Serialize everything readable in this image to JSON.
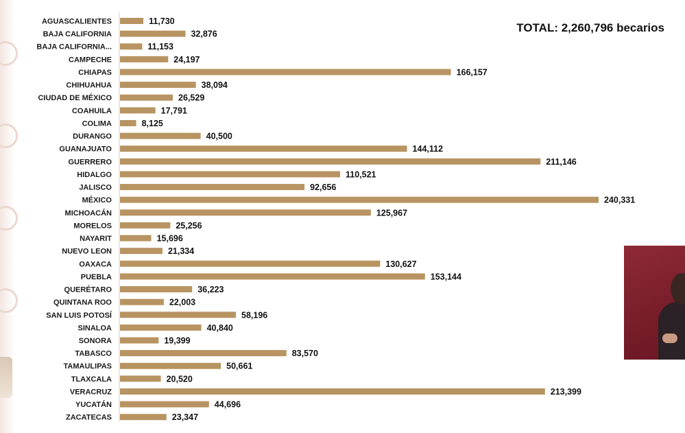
{
  "header": {
    "total_label": "TOTAL: 2,260,796 becarios"
  },
  "colors": {
    "bar": "#b89462",
    "text": "#1a1a1a",
    "panel": "#7f2330"
  },
  "chart_data": {
    "type": "bar",
    "orientation": "horizontal",
    "title": "",
    "xlabel": "",
    "ylabel": "",
    "xlim": [
      0,
      240331
    ],
    "categories": [
      "AGUASCALIENTES",
      "BAJA CALIFORNIA",
      "BAJA CALIFORNIA...",
      "CAMPECHE",
      "CHIAPAS",
      "CHIHUAHUA",
      "CIUDAD DE MÉXICO",
      "COAHUILA",
      "COLIMA",
      "DURANGO",
      "GUANAJUATO",
      "GUERRERO",
      "HIDALGO",
      "JALISCO",
      "MÉXICO",
      "MICHOACÁN",
      "MORELOS",
      "NAYARIT",
      "NUEVO LEON",
      "OAXACA",
      "PUEBLA",
      "QUERÉTARO",
      "QUINTANA ROO",
      "SAN LUIS POTOSÍ",
      "SINALOA",
      "SONORA",
      "TABASCO",
      "TAMAULIPAS",
      "TLAXCALA",
      "VERACRUZ",
      "YUCATÁN",
      "ZACATECAS"
    ],
    "values": [
      11730,
      32876,
      11153,
      24197,
      166157,
      38094,
      26529,
      17791,
      8125,
      40500,
      144112,
      211146,
      110521,
      92656,
      240331,
      125967,
      25256,
      15696,
      21334,
      130627,
      153144,
      36223,
      22003,
      58196,
      40840,
      19399,
      83570,
      50661,
      20520,
      213399,
      44696,
      23347
    ],
    "value_labels": [
      "11,730",
      "32,876",
      "11,153",
      "24,197",
      "166,157",
      "38,094",
      "26,529",
      "17,791",
      "8,125",
      "40,500",
      "144,112",
      "211,146",
      "110,521",
      "92,656",
      "240,331",
      "125,967",
      "25,256",
      "15,696",
      "21,334",
      "130,627",
      "153,144",
      "36,223",
      "22,003",
      "58,196",
      "40,840",
      "19,399",
      "83,570",
      "50,661",
      "20,520",
      "213,399",
      "44,696",
      "23,347"
    ]
  }
}
